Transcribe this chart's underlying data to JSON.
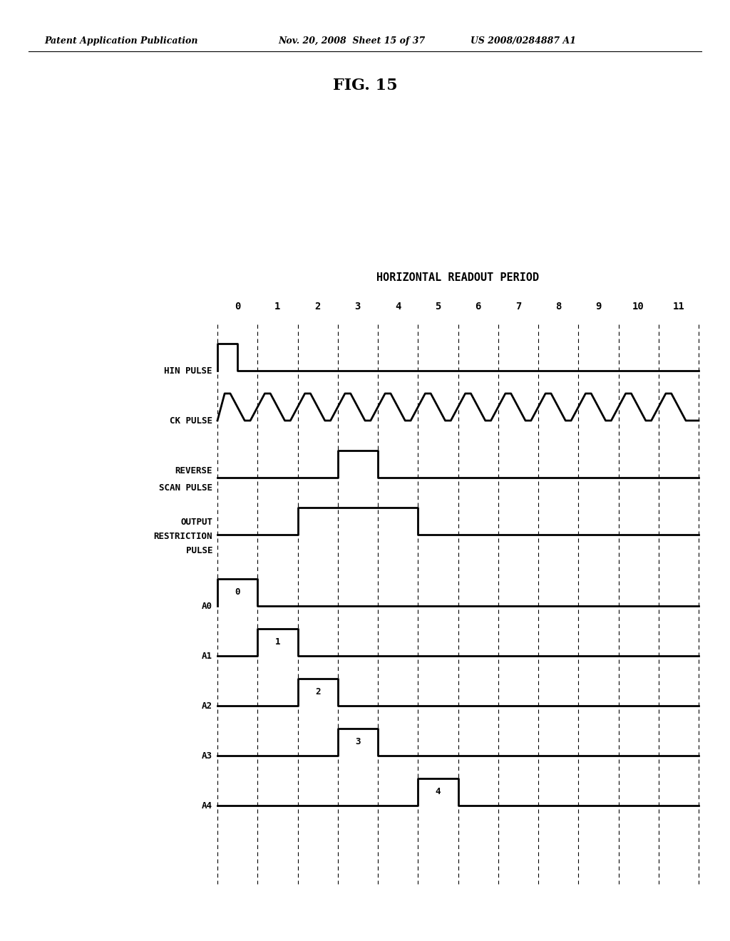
{
  "title_header_left": "Patent Application Publication",
  "title_header_mid": "Nov. 20, 2008  Sheet 15 of 37",
  "title_header_right": "US 2008/0284887 A1",
  "fig_label": "FIG. 15",
  "diagram_title": "HORIZONTAL READOUT PERIOD",
  "time_labels": [
    "0",
    "1",
    "2",
    "3",
    "4",
    "5",
    "6",
    "7",
    "8",
    "9",
    "10",
    "11"
  ],
  "background_color": "#ffffff",
  "line_color": "#000000"
}
